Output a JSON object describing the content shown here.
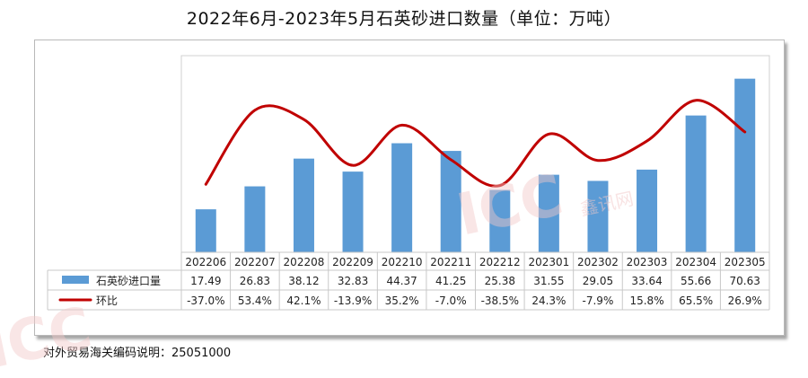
{
  "title": "2022年6月-2023年5月石英砂进口数量（单位：万吨）",
  "footnote": "对外贸易海关编码说明：25051000",
  "watermark": {
    "text": "ICC",
    "sub": "鑫讯网"
  },
  "colors": {
    "bar": "#5b9bd5",
    "line": "#c00000",
    "grid": "#d0d0d0",
    "table_border": "#c8c8c8"
  },
  "chart_data": {
    "type": "bar",
    "categories": [
      "202206",
      "202207",
      "202208",
      "202209",
      "202210",
      "202211",
      "202212",
      "202301",
      "202302",
      "202303",
      "202304",
      "202305"
    ],
    "series": [
      {
        "name": "石英砂进口量",
        "type": "bar",
        "axis": "left",
        "values": [
          17.49,
          26.83,
          38.12,
          32.83,
          44.37,
          41.25,
          25.38,
          31.55,
          29.05,
          33.64,
          55.66,
          70.63
        ],
        "labels": [
          "17.49",
          "26.83",
          "38.12",
          "32.83",
          "44.37",
          "41.25",
          "25.38",
          "31.55",
          "29.05",
          "33.64",
          "55.66",
          "70.63"
        ]
      },
      {
        "name": "环比",
        "type": "line",
        "axis": "right",
        "smooth": true,
        "values": [
          -37.0,
          53.4,
          42.1,
          -13.9,
          35.2,
          -7.0,
          -38.5,
          24.3,
          -7.9,
          15.8,
          65.5,
          26.9
        ],
        "labels": [
          "-37.0%",
          "53.4%",
          "42.1%",
          "-13.9%",
          "35.2%",
          "-7.0%",
          "-38.5%",
          "24.3%",
          "-7.9%",
          "15.8%",
          "65.5%",
          "26.9%"
        ]
      }
    ],
    "ylim": [
      0,
      80
    ],
    "y2lim": [
      -120,
      120
    ],
    "legend": "data-table",
    "grid": false
  }
}
